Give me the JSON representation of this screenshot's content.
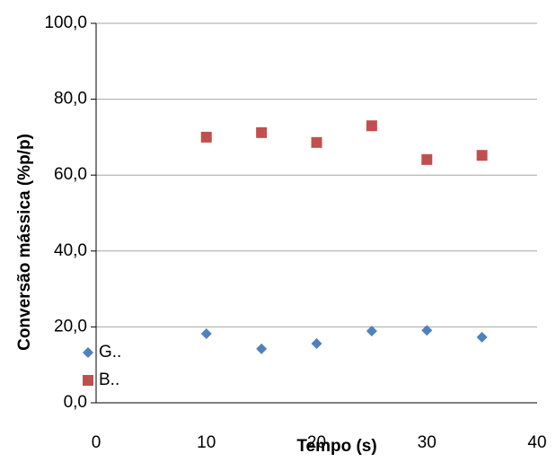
{
  "chart_data": {
    "type": "scatter",
    "x_label": "Tempo (s)",
    "y_label": "Conversão mássica (%p/p)",
    "xlim": [
      0,
      40
    ],
    "xticks": [
      0,
      10,
      20,
      30,
      40
    ],
    "ylim": [
      0,
      100
    ],
    "yticks": [
      {
        "value": 0,
        "label": "0,0"
      },
      {
        "value": 20,
        "label": "20,0"
      },
      {
        "value": 40,
        "label": "40,0"
      },
      {
        "value": 60,
        "label": "60,0"
      },
      {
        "value": 80,
        "label": "80,0"
      },
      {
        "value": 100,
        "label": "100,0"
      }
    ],
    "grid": true,
    "series": [
      {
        "name": "G..",
        "color": "#4f81bd",
        "marker": "diamond",
        "x": [
          10,
          15,
          20,
          25,
          30,
          35
        ],
        "values": [
          18.2,
          14.2,
          15.6,
          18.9,
          19.1,
          17.3
        ]
      },
      {
        "name": "B..",
        "color": "#c0504d",
        "marker": "square",
        "x": [
          10,
          15,
          20,
          25,
          30,
          35
        ],
        "values": [
          70.0,
          71.2,
          68.6,
          73.0,
          64.1,
          65.2
        ]
      }
    ]
  }
}
